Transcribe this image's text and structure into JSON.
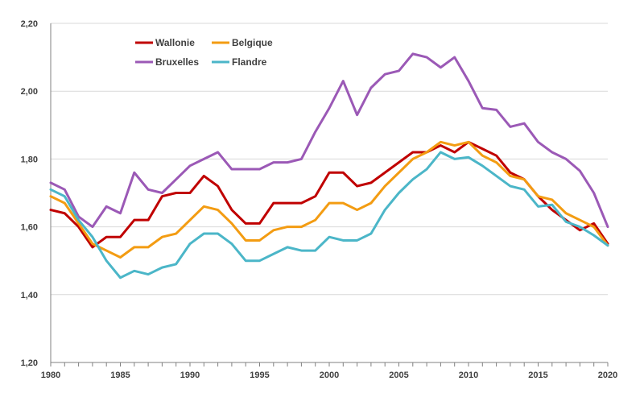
{
  "chart_data": {
    "type": "line",
    "title": "",
    "xlabel": "",
    "ylabel": "",
    "x": [
      1980,
      1981,
      1982,
      1983,
      1984,
      1985,
      1986,
      1987,
      1988,
      1989,
      1990,
      1991,
      1992,
      1993,
      1994,
      1995,
      1996,
      1997,
      1998,
      1999,
      2000,
      2001,
      2002,
      2003,
      2004,
      2005,
      2006,
      2007,
      2008,
      2009,
      2010,
      2011,
      2012,
      2013,
      2014,
      2015,
      2016,
      2017,
      2018,
      2019,
      2020
    ],
    "xlim": [
      1980,
      2020
    ],
    "ylim": [
      1.2,
      2.2
    ],
    "x_ticks": [
      1980,
      1985,
      1990,
      1995,
      2000,
      2005,
      2010,
      2015,
      2020
    ],
    "x_tick_labels": [
      "1980",
      "1985",
      "1990",
      "1995",
      "2000",
      "2005",
      "2010",
      "2015",
      "2020"
    ],
    "y_ticks": [
      1.2,
      1.4,
      1.6,
      1.8,
      2.0,
      2.2
    ],
    "y_tick_labels": [
      "1,20",
      "1,40",
      "1,60",
      "1,80",
      "2,00",
      "2,20"
    ],
    "grid": "horizontal",
    "legend_position": "top-left",
    "series": [
      {
        "name": "Wallonie",
        "color": "#c00000",
        "values": [
          1.65,
          1.64,
          1.6,
          1.54,
          1.57,
          1.57,
          1.62,
          1.62,
          1.69,
          1.7,
          1.7,
          1.75,
          1.72,
          1.65,
          1.61,
          1.61,
          1.67,
          1.67,
          1.67,
          1.69,
          1.76,
          1.76,
          1.72,
          1.73,
          1.76,
          1.79,
          1.82,
          1.82,
          1.84,
          1.82,
          1.85,
          1.83,
          1.81,
          1.76,
          1.74,
          1.69,
          1.65,
          1.62,
          1.59,
          1.61,
          1.55
        ]
      },
      {
        "name": "Belgique",
        "color": "#f39c12",
        "values": [
          1.69,
          1.67,
          1.61,
          1.55,
          1.53,
          1.51,
          1.54,
          1.54,
          1.57,
          1.58,
          1.62,
          1.66,
          1.65,
          1.61,
          1.56,
          1.56,
          1.59,
          1.6,
          1.6,
          1.62,
          1.67,
          1.67,
          1.65,
          1.67,
          1.72,
          1.76,
          1.8,
          1.82,
          1.85,
          1.84,
          1.85,
          1.81,
          1.79,
          1.75,
          1.74,
          1.69,
          1.68,
          1.64,
          1.62,
          1.6,
          1.545
        ]
      },
      {
        "name": "Bruxelles",
        "color": "#9b59b6",
        "values": [
          1.73,
          1.71,
          1.63,
          1.6,
          1.66,
          1.64,
          1.76,
          1.71,
          1.7,
          1.74,
          1.78,
          1.8,
          1.82,
          1.77,
          1.77,
          1.77,
          1.79,
          1.79,
          1.8,
          1.88,
          1.95,
          2.03,
          1.93,
          2.01,
          2.05,
          2.06,
          2.11,
          2.1,
          2.07,
          2.1,
          2.03,
          1.95,
          1.945,
          1.895,
          1.905,
          1.85,
          1.82,
          1.8,
          1.765,
          1.7,
          1.6
        ]
      },
      {
        "name": "Flandre",
        "color": "#4bb6c8",
        "values": [
          1.71,
          1.69,
          1.62,
          1.57,
          1.5,
          1.45,
          1.47,
          1.46,
          1.48,
          1.49,
          1.55,
          1.58,
          1.58,
          1.55,
          1.5,
          1.5,
          1.52,
          1.54,
          1.53,
          1.53,
          1.57,
          1.56,
          1.56,
          1.58,
          1.65,
          1.7,
          1.74,
          1.77,
          1.82,
          1.8,
          1.805,
          1.78,
          1.75,
          1.72,
          1.71,
          1.66,
          1.665,
          1.615,
          1.6,
          1.575,
          1.545
        ]
      }
    ]
  }
}
